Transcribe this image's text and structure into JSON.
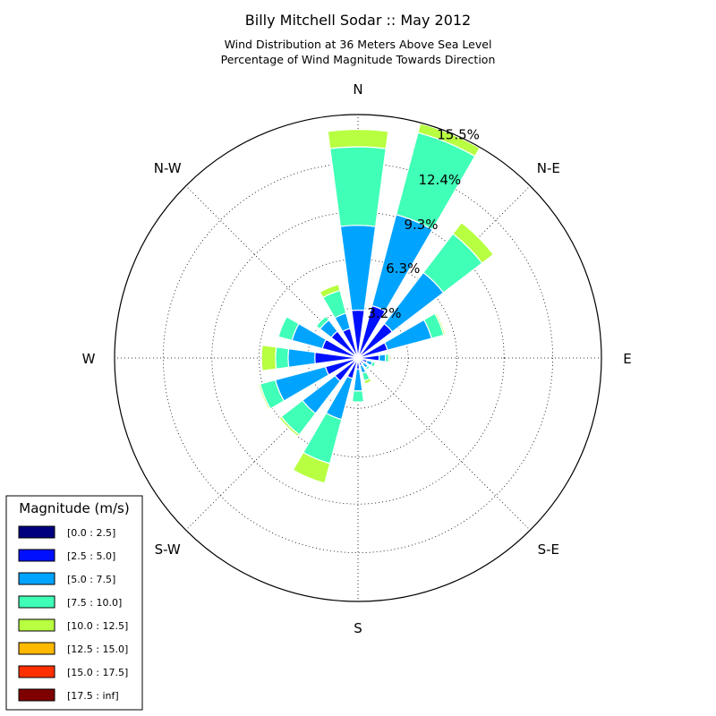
{
  "chart_data": {
    "type": "windrose",
    "title": "Billy Mitchell Sodar :: May 2012",
    "subtitle_lines": [
      "Wind Distribution at 36 Meters Above Sea Level",
      "Percentage of Wind Magnitude Towards Direction"
    ],
    "directions": [
      "N",
      "NNE",
      "NE",
      "ENE",
      "E",
      "ESE",
      "SE",
      "SSE",
      "S",
      "SSW",
      "SW",
      "WSW",
      "W",
      "WNW",
      "NW",
      "NNW"
    ],
    "direction_angles_deg": [
      0,
      22.5,
      45,
      67.5,
      90,
      112.5,
      135,
      157.5,
      180,
      202.5,
      225,
      247.5,
      270,
      292.5,
      315,
      337.5
    ],
    "compass_labels": [
      {
        "text": "N",
        "angle": 0
      },
      {
        "text": "N-E",
        "angle": 45
      },
      {
        "text": "E",
        "angle": 90
      },
      {
        "text": "S-E",
        "angle": 135
      },
      {
        "text": "S",
        "angle": 180
      },
      {
        "text": "S-W",
        "angle": 225
      },
      {
        "text": "W",
        "angle": 270
      },
      {
        "text": "N-W",
        "angle": 315
      }
    ],
    "radial_ticks": [
      3.2,
      6.3,
      9.3,
      12.4,
      15.5
    ],
    "radial_tick_labels": [
      "3.2%",
      "6.3%",
      "9.3%",
      "12.4%",
      "15.5%"
    ],
    "r_max": 15.5,
    "series": [
      {
        "name": "[0.0 : 2.5]",
        "color": "#00007f",
        "values": [
          0.05,
          0.05,
          0.05,
          0.05,
          0.05,
          0.05,
          0.05,
          0.05,
          0.05,
          0.05,
          0.05,
          0.05,
          0.05,
          0.05,
          0.05,
          0.05
        ]
      },
      {
        "name": "[2.5 : 5.0]",
        "color": "#0010ff",
        "values": [
          3.0,
          3.4,
          2.7,
          1.9,
          1.3,
          0.55,
          0.4,
          0.45,
          0.65,
          1.3,
          1.8,
          2.1,
          2.7,
          2.3,
          2.1,
          1.9
        ]
      },
      {
        "name": "[5.0 : 7.5]",
        "color": "#00a4ff",
        "values": [
          5.4,
          6.0,
          4.1,
          2.9,
          0.4,
          0.35,
          0.35,
          0.5,
          1.4,
          2.7,
          2.6,
          3.3,
          1.7,
          2.0,
          0.9,
          1.0
        ]
      },
      {
        "name": "[7.5 : 10.0]",
        "color": "#40ffb7",
        "values": [
          5.0,
          5.4,
          3.1,
          0.8,
          0.2,
          0.2,
          0.15,
          0.5,
          0.7,
          2.9,
          1.7,
          1.0,
          0.8,
          0.9,
          0.3,
          1.5
        ]
      },
      {
        "name": "[10.0 : 12.5]",
        "color": "#b7ff40",
        "values": [
          1.1,
          0.6,
          0.9,
          0.1,
          0.1,
          0.05,
          0.05,
          0.2,
          0.05,
          1.3,
          0.15,
          0.1,
          0.9,
          0.05,
          0.05,
          0.4
        ]
      },
      {
        "name": "[12.5 : 15.0]",
        "color": "#ffb900",
        "values": [
          0,
          0,
          0,
          0,
          0,
          0,
          0,
          0,
          0,
          0.05,
          0.05,
          0,
          0,
          0,
          0,
          0
        ]
      },
      {
        "name": "[15.0 : 17.5]",
        "color": "#ff3000",
        "values": [
          0,
          0,
          0,
          0,
          0,
          0,
          0,
          0,
          0,
          0,
          0,
          0,
          0,
          0,
          0,
          0
        ]
      },
      {
        "name": "[17.5 : inf]",
        "color": "#7f0000",
        "values": [
          0,
          0,
          0,
          0,
          0,
          0,
          0,
          0,
          0,
          0,
          0,
          0,
          0,
          0,
          0,
          0
        ]
      }
    ],
    "legend": {
      "title": "Magnitude (m/s)",
      "placement": "lower-left"
    },
    "grid": true
  }
}
